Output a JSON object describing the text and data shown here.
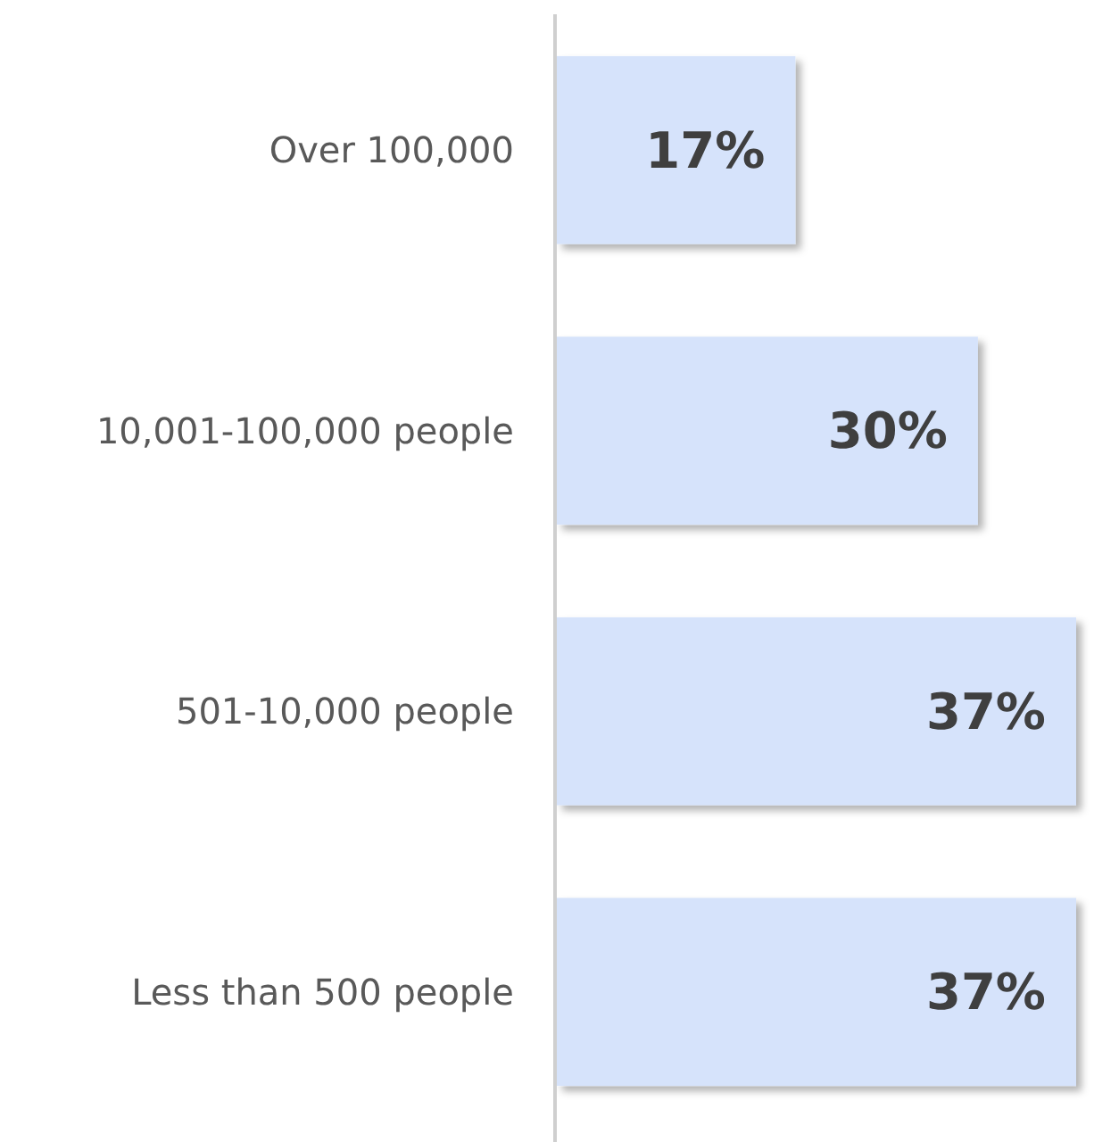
{
  "chart_data": {
    "type": "bar",
    "orientation": "horizontal",
    "categories": [
      "Over 100,000",
      "10,001-100,000 people",
      "501-10,000 people",
      "Less than 500 people"
    ],
    "values": [
      17,
      30,
      37,
      37
    ],
    "color": "#d6e3fb",
    "data_labels": true,
    "value_labels": [
      "17%",
      "30%",
      "37%",
      "37%"
    ]
  }
}
